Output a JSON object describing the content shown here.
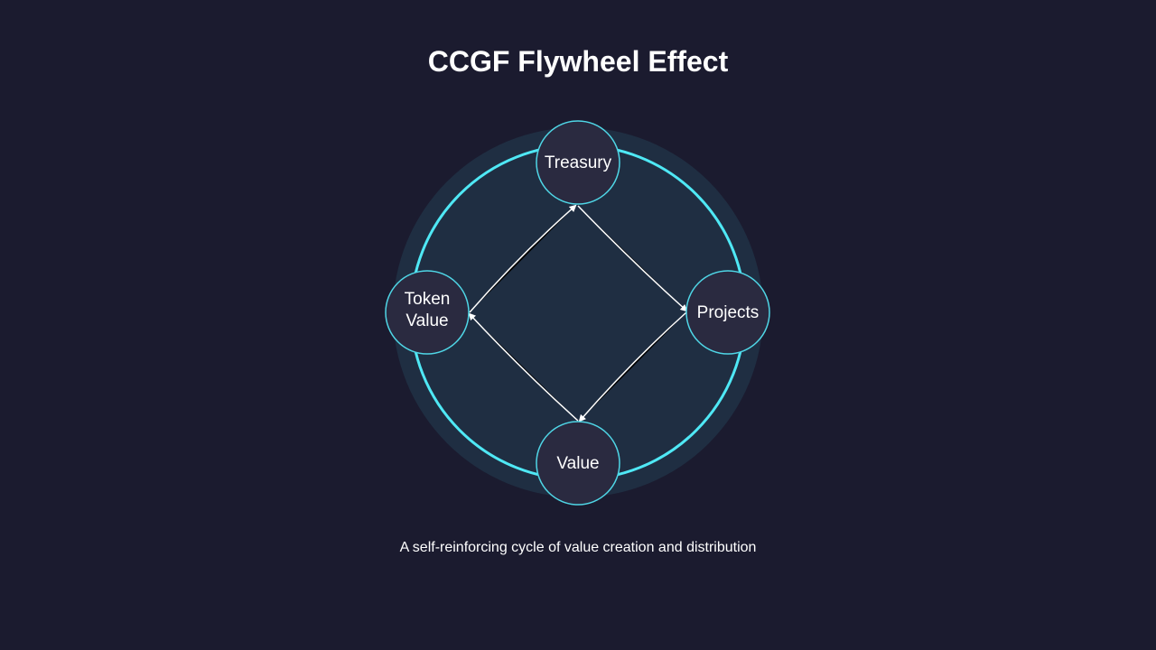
{
  "title": "CCGF Flywheel Effect",
  "caption": "A self-reinforcing cycle of value creation and distribution",
  "colors": {
    "background": "#1b1b2f",
    "wheel_fill": "#1f2e42",
    "ring": "#4fe8f5",
    "node_fill": "#2a2a40",
    "node_stroke": "#4fd6e6",
    "arrow": "#ffffff"
  },
  "nodes": {
    "top": {
      "lines": [
        "Treasury"
      ]
    },
    "right": {
      "lines": [
        "Projects"
      ]
    },
    "bottom": {
      "lines": [
        "Value"
      ]
    },
    "left": {
      "lines": [
        "Token",
        "Value"
      ]
    }
  }
}
